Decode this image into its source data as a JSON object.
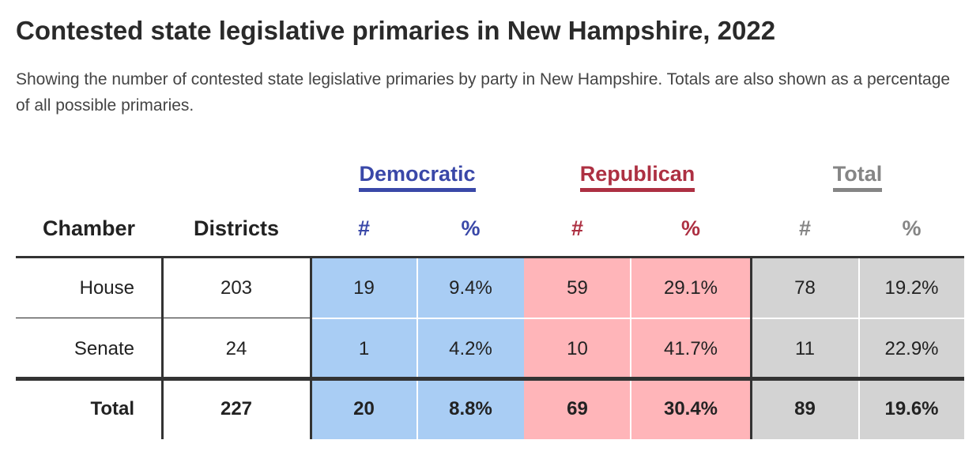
{
  "header": {
    "title": "Contested state legislative primaries in New Hampshire, 2022",
    "subtitle": "Showing the number of contested state legislative primaries by party in New Hampshire. Totals are also shown as a percentage of all possible primaries."
  },
  "table": {
    "groups": [
      "Democratic",
      "Republican",
      "Total"
    ],
    "columns": [
      "Chamber",
      "Districts",
      "#",
      "%",
      "#",
      "%",
      "#",
      "%"
    ],
    "rows": [
      [
        "House",
        "203",
        "19",
        "9.4%",
        "59",
        "29.1%",
        "78",
        "19.2%"
      ],
      [
        "Senate",
        "24",
        "1",
        "4.2%",
        "10",
        "41.7%",
        "11",
        "22.9%"
      ],
      [
        "Total",
        "227",
        "20",
        "8.8%",
        "69",
        "30.4%",
        "89",
        "19.6%"
      ]
    ]
  }
}
